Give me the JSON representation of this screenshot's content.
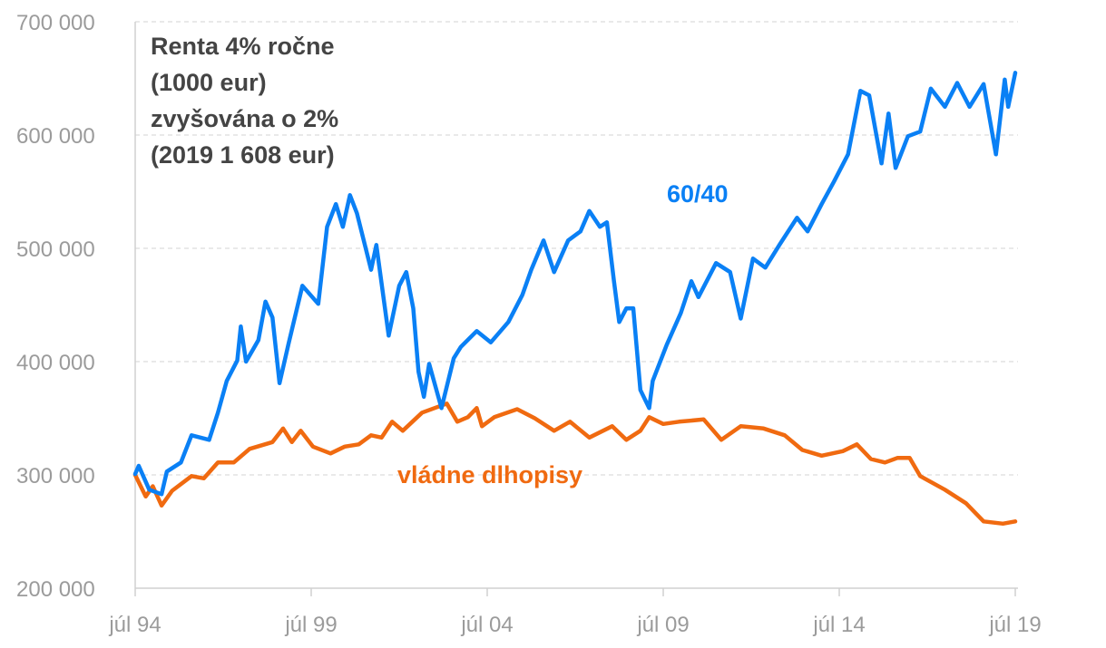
{
  "chart_data": {
    "type": "line",
    "title_lines": [
      "Renta 4% ročne",
      "(1000 eur)",
      "zvyšována o 2%",
      "(2019 1 608 eur)"
    ],
    "xlabel": "",
    "ylabel": "",
    "ylim": [
      200000,
      700000
    ],
    "yticks": [
      {
        "value": 200000,
        "label": "200 000"
      },
      {
        "value": 300000,
        "label": "300 000"
      },
      {
        "value": 400000,
        "label": "400 000"
      },
      {
        "value": 500000,
        "label": "500 000"
      },
      {
        "value": 600000,
        "label": "600 000"
      },
      {
        "value": 700000,
        "label": "700 000"
      }
    ],
    "xlim": [
      1994.5,
      2019.5
    ],
    "xticks": [
      {
        "value": 1994.5,
        "label": "júl 94"
      },
      {
        "value": 1999.5,
        "label": "júl 99"
      },
      {
        "value": 2004.5,
        "label": "júl 04"
      },
      {
        "value": 2009.5,
        "label": "júl 09"
      },
      {
        "value": 2014.5,
        "label": "júl 14"
      },
      {
        "value": 2019.5,
        "label": "júl 19"
      }
    ],
    "grid": "horizontal dashed",
    "legend": "inline labels",
    "series": [
      {
        "name": "60/40",
        "color": "#0a80f5",
        "x": [
          1994.5,
          1994.6,
          1994.9,
          1995.25,
          1995.4,
          1995.8,
          1996.1,
          1996.6,
          1996.85,
          1997.1,
          1997.4,
          1997.5,
          1997.65,
          1998.0,
          1998.2,
          1998.4,
          1998.6,
          1998.85,
          1999.25,
          1999.7,
          1999.95,
          2000.2,
          2000.4,
          2000.6,
          2000.8,
          2001.2,
          2001.35,
          2001.7,
          2002.0,
          2002.2,
          2002.4,
          2002.55,
          2002.7,
          2002.85,
          2003.2,
          2003.55,
          2003.75,
          2004.2,
          2004.6,
          2005.1,
          2005.5,
          2005.75,
          2006.1,
          2006.4,
          2006.8,
          2007.15,
          2007.4,
          2007.7,
          2007.9,
          2008.1,
          2008.25,
          2008.45,
          2008.65,
          2008.85,
          2009.1,
          2009.2,
          2009.6,
          2010.0,
          2010.3,
          2010.5,
          2011.0,
          2011.4,
          2011.7,
          2012.05,
          2012.4,
          2012.8,
          2013.3,
          2013.6,
          2014.0,
          2014.35,
          2014.75,
          2015.1,
          2015.35,
          2015.7,
          2015.9,
          2016.1,
          2016.45,
          2016.8,
          2017.1,
          2017.5,
          2017.85,
          2018.2,
          2018.6,
          2018.95,
          2019.2,
          2019.3,
          2019.5
        ],
        "y": [
          300800,
          308000,
          287000,
          283000,
          303000,
          311000,
          335000,
          331000,
          355000,
          383000,
          401000,
          431000,
          400000,
          419000,
          453000,
          439000,
          381000,
          415000,
          467000,
          451000,
          519000,
          539000,
          519000,
          547000,
          531000,
          481000,
          503000,
          423000,
          467000,
          479000,
          447000,
          391000,
          369000,
          398000,
          359000,
          403000,
          413000,
          427000,
          417000,
          435000,
          459000,
          481000,
          507000,
          479000,
          507000,
          515000,
          533000,
          519000,
          523000,
          471000,
          435000,
          447000,
          447000,
          375000,
          359000,
          383000,
          415000,
          443000,
          471000,
          457000,
          487000,
          479000,
          438000,
          491000,
          483000,
          503000,
          527000,
          515000,
          539000,
          559000,
          583000,
          639000,
          635000,
          575000,
          619000,
          571000,
          599000,
          603000,
          641000,
          625000,
          646000,
          625000,
          645000,
          583000,
          649000,
          625000,
          655000
        ]
      },
      {
        "name": "vládne dlhopisy",
        "color": "#f06a10",
        "x": [
          1994.5,
          1994.8,
          1995.0,
          1995.25,
          1995.55,
          1996.1,
          1996.45,
          1996.85,
          1997.3,
          1997.75,
          1998.4,
          1998.7,
          1998.95,
          1999.2,
          1999.55,
          2000.05,
          2000.45,
          2000.85,
          2001.2,
          2001.5,
          2001.8,
          2002.1,
          2002.65,
          2003.0,
          2003.35,
          2003.65,
          2003.95,
          2004.2,
          2004.35,
          2004.7,
          2005.35,
          2005.85,
          2006.4,
          2006.85,
          2007.4,
          2008.05,
          2008.45,
          2008.85,
          2009.1,
          2009.5,
          2009.95,
          2010.65,
          2011.15,
          2011.7,
          2012.35,
          2012.95,
          2013.45,
          2014.0,
          2014.6,
          2015.0,
          2015.4,
          2015.8,
          2016.15,
          2016.5,
          2016.8,
          2017.5,
          2018.1,
          2018.6,
          2019.15,
          2019.5
        ],
        "y": [
          300000,
          281000,
          290000,
          273000,
          286000,
          299000,
          297000,
          311000,
          311000,
          323000,
          329000,
          341000,
          329000,
          339000,
          325000,
          319000,
          325000,
          327000,
          335000,
          333000,
          347000,
          339000,
          355000,
          359000,
          363000,
          347000,
          351000,
          359000,
          343000,
          351000,
          358000,
          350000,
          339000,
          347000,
          333000,
          343000,
          331000,
          339000,
          351000,
          345000,
          347000,
          349000,
          331000,
          343000,
          341000,
          335000,
          322000,
          317000,
          321000,
          327000,
          314000,
          311000,
          315000,
          315000,
          299000,
          287000,
          275000,
          259000,
          257000,
          259000
        ]
      }
    ]
  }
}
